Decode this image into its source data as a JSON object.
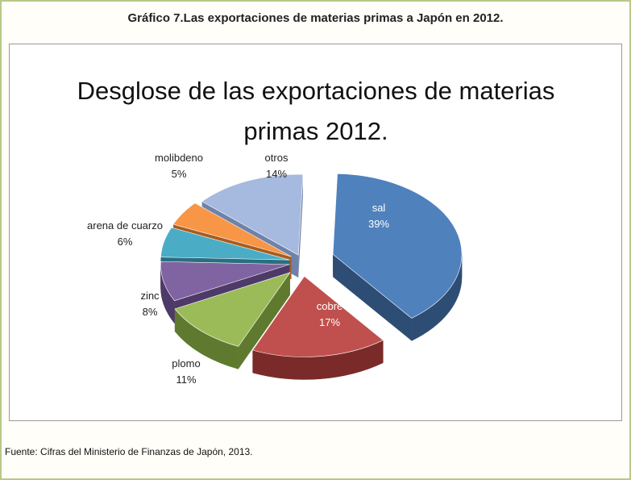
{
  "figure": {
    "caption": "Gráfico 7.Las exportaciones de materias primas a Japón en 2012.",
    "source": "Fuente: Cifras del Ministerio de Finanzas de Japón, 2013."
  },
  "chart_data": {
    "type": "pie",
    "title_line1": "Desglose de las exportaciones de materias",
    "title_line2": "primas  2012.",
    "slices": [
      {
        "label": "sal",
        "value": 39,
        "value_label": "39%",
        "color": "#4f81bd",
        "side": "#2e4d75"
      },
      {
        "label": "cobre",
        "value": 17,
        "value_label": "17%",
        "color": "#c0504d",
        "side": "#7a2a28"
      },
      {
        "label": "plomo",
        "value": 11,
        "value_label": "11%",
        "color": "#9bbb59",
        "side": "#5f7a2f"
      },
      {
        "label": "zinc",
        "value": 8,
        "value_label": "8%",
        "color": "#8064a2",
        "side": "#4e3a68"
      },
      {
        "label": "arena de cuarzo",
        "value": 6,
        "value_label": "6%",
        "color": "#4bacc6",
        "side": "#2a6f80"
      },
      {
        "label": "molibdeno",
        "value": 5,
        "value_label": "5%",
        "color": "#f79646",
        "side": "#a85d1e"
      },
      {
        "label": "otros",
        "value": 14,
        "value_label": "14%",
        "color": "#a6b9de",
        "side": "#6f82a8"
      }
    ]
  }
}
